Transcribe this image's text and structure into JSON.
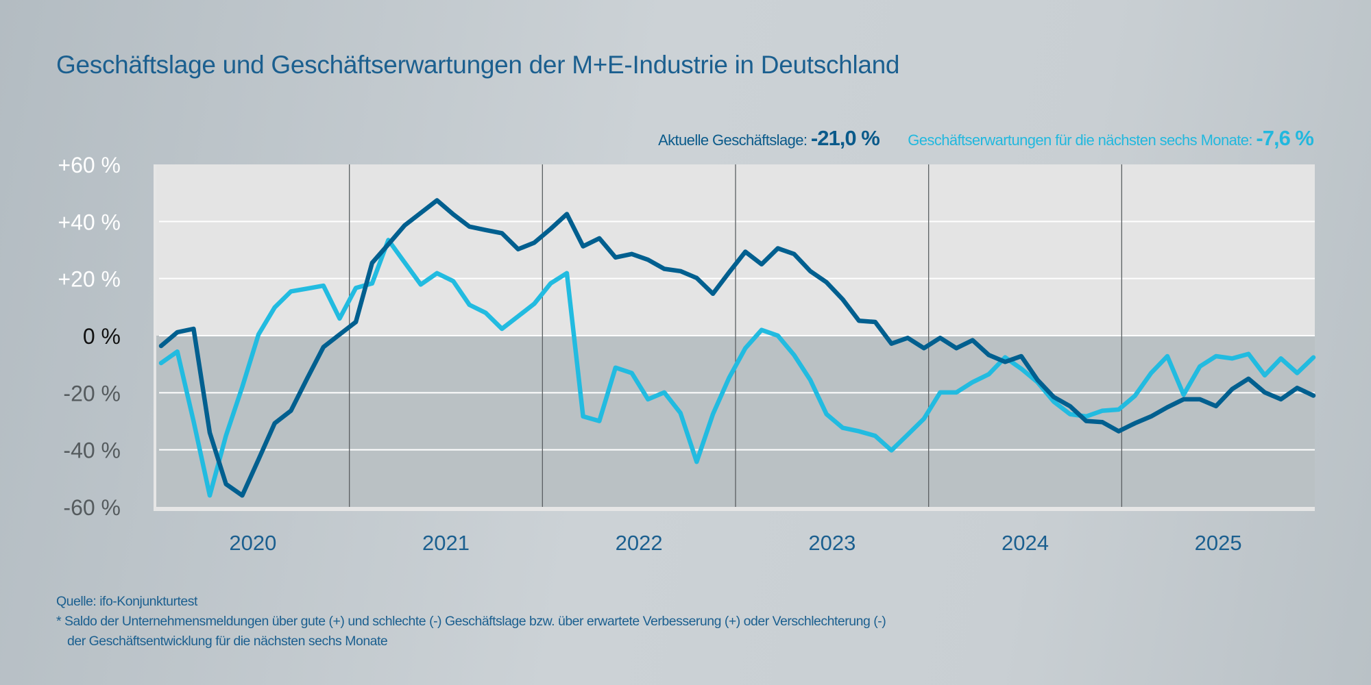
{
  "title": "Geschäftslage und Geschäftserwartungen der M+E-Industrie in Deutschland",
  "legend": {
    "dark_label": "Aktuelle Geschäftslage:",
    "dark_value": "-21,0 %",
    "light_label": "Geschäftserwartungen für die nächsten sechs Monate:",
    "light_value": "-7,6 %"
  },
  "footer": {
    "source": "Quelle: ifo-Konjunkturtest",
    "note_line1": "* Saldo der Unternehmensmeldungen über gute (+) und schlechte (-) Geschäftslage bzw. über erwartete Verbesserung (+) oder Verschlechterung (-)",
    "note_line2": "der Geschäftsentwicklung für die nächsten sechs Monate"
  },
  "colors": {
    "dark_series": "#005f8f",
    "light_series": "#22bbe0",
    "positive_area": "#e4e4e4",
    "negative_area": "#bac1c4"
  },
  "chart_data": {
    "type": "line",
    "title": "Geschäftslage und Geschäftserwartungen der M+E-Industrie in Deutschland",
    "x_unit": "month",
    "x_start": "2020-01",
    "x_end": "2025-12",
    "year_labels": [
      "2020",
      "2021",
      "2022",
      "2023",
      "2024",
      "2025"
    ],
    "y_ticks": [
      60,
      40,
      20,
      0,
      -20,
      -40,
      -60
    ],
    "y_tick_labels": [
      "+60 %",
      "+40 %",
      "+20 %",
      "0 %",
      "-20 %",
      "-40 %",
      "-60 %"
    ],
    "ylim": [
      -60,
      60
    ],
    "grid": "horizontal",
    "series": [
      {
        "name": "Aktuelle Geschäftslage",
        "color": "#005f8f",
        "values": [
          -3.6,
          1.2,
          2.4,
          -34,
          -52,
          -56,
          -43.4,
          -30.7,
          -26.3,
          -15,
          -4,
          0.4,
          4.8,
          25.5,
          32,
          38.6,
          43,
          47.4,
          42.5,
          38.2,
          37,
          35.9,
          30.3,
          32.6,
          37.4,
          42.6,
          31.3,
          34.1,
          27.4,
          28.6,
          26.6,
          23.4,
          22.6,
          20.2,
          14.7,
          22.2,
          29.4,
          25,
          30.6,
          28.6,
          22.6,
          18.7,
          12.7,
          5.2,
          4.8,
          -2.8,
          -0.8,
          -4.4,
          -0.8,
          -4.4,
          -1.6,
          -6.8,
          -9.2,
          -7.2,
          -15.5,
          -21.5,
          -24.7,
          -29.9,
          -30.3,
          -33.5,
          -30.7,
          -28.3,
          -25.1,
          -22.3,
          -22.3,
          -24.7,
          -18.7,
          -15.1,
          -19.9,
          -22.3,
          -18.3,
          -21.0
        ]
      },
      {
        "name": "Geschäftserwartungen für die nächsten sechs Monate",
        "color": "#22bbe0",
        "values": [
          -9.6,
          -5.6,
          -30,
          -56,
          -35,
          -18,
          0.4,
          9.9,
          15.5,
          16.5,
          17.5,
          6.0,
          16.7,
          18.3,
          33.5,
          25.7,
          17.9,
          21.9,
          19.1,
          10.8,
          8,
          2.4,
          6.8,
          11.2,
          18.3,
          21.9,
          -28.3,
          -29.9,
          -11.2,
          -13.1,
          -22.3,
          -19.9,
          -27.1,
          -44.2,
          -27.5,
          -14.7,
          -4.4,
          2.0,
          0,
          -6.8,
          -15.5,
          -27.5,
          -32.3,
          -33.5,
          -35.1,
          -40.2,
          -34.7,
          -29.1,
          -19.9,
          -19.9,
          -16.3,
          -13.5,
          -7.6,
          -11.6,
          -16.3,
          -23.1,
          -27.5,
          -28.3,
          -26.3,
          -25.9,
          -21.1,
          -13.1,
          -7.2,
          -20.7,
          -10.8,
          -7.2,
          -8.0,
          -6.4,
          -13.9,
          -8.0,
          -13.1,
          -7.6
        ]
      }
    ]
  }
}
